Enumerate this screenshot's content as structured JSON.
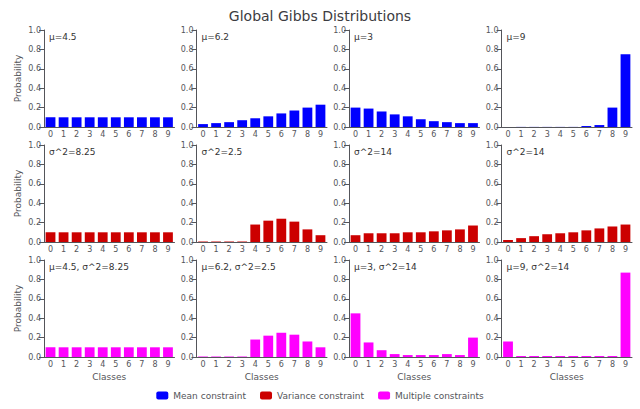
{
  "title": "Global Gibbs Distributions",
  "legend": "bottom",
  "chart_data": [
    {
      "type": "bar",
      "annotation": "μ=4.5",
      "ylabel": "Probability",
      "categories": [
        "0",
        "1",
        "2",
        "3",
        "4",
        "5",
        "6",
        "7",
        "8",
        "9"
      ],
      "series": [
        {
          "name": "Mean constraint",
          "color": "#0000ff",
          "values": [
            0.1,
            0.1,
            0.1,
            0.1,
            0.1,
            0.1,
            0.1,
            0.1,
            0.1,
            0.1
          ]
        }
      ],
      "ylim": [
        0,
        1.0
      ],
      "yticks": [
        {
          "value": 0.0,
          "label": "0.0"
        },
        0.2,
        0.4,
        0.6,
        0.8,
        {
          "value": 1.0,
          "label": "1.0"
        }
      ],
      "grid": false
    },
    {
      "type": "bar",
      "annotation": "μ=6.2",
      "categories": [
        "0",
        "1",
        "2",
        "3",
        "4",
        "5",
        "6",
        "7",
        "8",
        "9"
      ],
      "series": [
        {
          "name": "Mean constraint",
          "color": "#0000ff",
          "values": [
            0.03,
            0.04,
            0.05,
            0.07,
            0.09,
            0.11,
            0.14,
            0.17,
            0.2,
            0.23
          ]
        }
      ],
      "ylim": [
        0,
        1.0
      ],
      "yticks": [
        {
          "value": 0.0,
          "label": "0.0"
        },
        0.2,
        0.4,
        0.6,
        0.8,
        {
          "value": 1.0,
          "label": "1.0"
        }
      ],
      "grid": false
    },
    {
      "type": "bar",
      "annotation": "μ=3",
      "categories": [
        "0",
        "1",
        "2",
        "3",
        "4",
        "5",
        "6",
        "7",
        "8",
        "9"
      ],
      "series": [
        {
          "name": "Mean constraint",
          "color": "#0000ff",
          "values": [
            0.2,
            0.19,
            0.16,
            0.13,
            0.11,
            0.08,
            0.06,
            0.05,
            0.04,
            0.04
          ]
        }
      ],
      "ylim": [
        0,
        1.0
      ],
      "yticks": [
        {
          "value": 0.0,
          "label": "0.0"
        },
        0.2,
        0.4,
        0.6,
        0.8,
        {
          "value": 1.0,
          "label": "1.0"
        }
      ],
      "grid": false
    },
    {
      "type": "bar",
      "annotation": "μ=9",
      "categories": [
        "0",
        "1",
        "2",
        "3",
        "4",
        "5",
        "6",
        "7",
        "8",
        "9"
      ],
      "series": [
        {
          "name": "Mean constraint",
          "color": "#0000ff",
          "values": [
            0.001,
            0.001,
            0.001,
            0.001,
            0.001,
            0.001,
            0.01,
            0.02,
            0.2,
            0.75
          ]
        }
      ],
      "ylim": [
        0,
        1.0
      ],
      "yticks": [
        {
          "value": 0.0,
          "label": "0.0"
        },
        0.2,
        0.4,
        0.6,
        0.8,
        {
          "value": 1.0,
          "label": "1.0"
        }
      ],
      "grid": false
    },
    {
      "type": "bar",
      "annotation": "σ^2=8.25",
      "ylabel": "Probability",
      "categories": [
        "0",
        "1",
        "2",
        "3",
        "4",
        "5",
        "6",
        "7",
        "8",
        "9"
      ],
      "series": [
        {
          "name": "Variance constraint",
          "color": "#cc0000",
          "values": [
            0.1,
            0.1,
            0.1,
            0.1,
            0.1,
            0.1,
            0.1,
            0.1,
            0.1,
            0.1
          ]
        }
      ],
      "ylim": [
        0,
        1.0
      ],
      "yticks": [
        {
          "value": 0.0,
          "label": "0.0"
        },
        0.2,
        0.4,
        0.6,
        0.8,
        {
          "value": 1.0,
          "label": "1.0"
        }
      ],
      "grid": false
    },
    {
      "type": "bar",
      "annotation": "σ^2=2.5",
      "categories": [
        "0",
        "1",
        "2",
        "3",
        "4",
        "5",
        "6",
        "7",
        "8",
        "9"
      ],
      "series": [
        {
          "name": "Variance constraint",
          "color": "#cc0000",
          "values": [
            0.005,
            0.005,
            0.005,
            0.005,
            0.18,
            0.22,
            0.24,
            0.21,
            0.13,
            0.07
          ]
        }
      ],
      "ylim": [
        0,
        1.0
      ],
      "yticks": [
        {
          "value": 0.0,
          "label": "0.0"
        },
        0.2,
        0.4,
        0.6,
        0.8,
        {
          "value": 1.0,
          "label": "1.0"
        }
      ],
      "grid": false
    },
    {
      "type": "bar",
      "annotation": "σ^2=14",
      "categories": [
        "0",
        "1",
        "2",
        "3",
        "4",
        "5",
        "6",
        "7",
        "8",
        "9"
      ],
      "series": [
        {
          "name": "Variance constraint",
          "color": "#cc0000",
          "values": [
            0.07,
            0.09,
            0.09,
            0.09,
            0.1,
            0.1,
            0.11,
            0.12,
            0.13,
            0.17
          ]
        }
      ],
      "ylim": [
        0,
        1.0
      ],
      "yticks": [
        {
          "value": 0.0,
          "label": "0.0"
        },
        0.2,
        0.4,
        0.6,
        0.8,
        {
          "value": 1.0,
          "label": "1.0"
        }
      ],
      "grid": false
    },
    {
      "type": "bar",
      "annotation": "σ^2=14",
      "categories": [
        "0",
        "1",
        "2",
        "3",
        "4",
        "5",
        "6",
        "7",
        "8",
        "9"
      ],
      "series": [
        {
          "name": "Variance constraint",
          "color": "#cc0000",
          "values": [
            0.02,
            0.04,
            0.06,
            0.08,
            0.09,
            0.1,
            0.12,
            0.14,
            0.16,
            0.18
          ]
        }
      ],
      "ylim": [
        0,
        1.0
      ],
      "yticks": [
        {
          "value": 0.0,
          "label": "0.0"
        },
        0.2,
        0.4,
        0.6,
        0.8,
        {
          "value": 1.0,
          "label": "1.0"
        }
      ],
      "grid": false
    },
    {
      "type": "bar",
      "annotation": "μ=4.5, σ^2=8.25",
      "ylabel": "Probability",
      "xlabel": "Classes",
      "categories": [
        "0",
        "1",
        "2",
        "3",
        "4",
        "5",
        "6",
        "7",
        "8",
        "9"
      ],
      "series": [
        {
          "name": "Multiple constraints",
          "color": "#ff00ff",
          "values": [
            0.1,
            0.1,
            0.1,
            0.1,
            0.1,
            0.1,
            0.1,
            0.1,
            0.1,
            0.1
          ]
        }
      ],
      "ylim": [
        0,
        1.0
      ],
      "yticks": [
        {
          "value": 0.0,
          "label": "0.0"
        },
        0.2,
        0.4,
        0.6,
        0.8,
        {
          "value": 1.0,
          "label": "1.0"
        }
      ],
      "grid": false
    },
    {
      "type": "bar",
      "annotation": "μ=6.2, σ^2=2.5",
      "xlabel": "Classes",
      "categories": [
        "0",
        "1",
        "2",
        "3",
        "4",
        "5",
        "6",
        "7",
        "8",
        "9"
      ],
      "series": [
        {
          "name": "Multiple constraints",
          "color": "#ff00ff",
          "values": [
            0.005,
            0.005,
            0.005,
            0.005,
            0.18,
            0.22,
            0.25,
            0.23,
            0.16,
            0.1
          ]
        }
      ],
      "ylim": [
        0,
        1.0
      ],
      "yticks": [
        {
          "value": 0.0,
          "label": "0.0"
        },
        0.2,
        0.4,
        0.6,
        0.8,
        {
          "value": 1.0,
          "label": "1.0"
        }
      ],
      "grid": false
    },
    {
      "type": "bar",
      "annotation": "μ=3, σ^2=14",
      "xlabel": "Classes",
      "categories": [
        "0",
        "1",
        "2",
        "3",
        "4",
        "5",
        "6",
        "7",
        "8",
        "9"
      ],
      "series": [
        {
          "name": "Multiple constraints",
          "color": "#ff00ff",
          "values": [
            0.45,
            0.15,
            0.07,
            0.03,
            0.02,
            0.02,
            0.02,
            0.03,
            0.02,
            0.2
          ]
        }
      ],
      "ylim": [
        0,
        1.0
      ],
      "yticks": [
        {
          "value": 0.0,
          "label": "0.0"
        },
        0.2,
        0.4,
        0.6,
        0.8,
        {
          "value": 1.0,
          "label": "1.0"
        }
      ],
      "grid": false
    },
    {
      "type": "bar",
      "annotation": "μ=9, σ^2=14",
      "xlabel": "Classes",
      "categories": [
        "0",
        "1",
        "2",
        "3",
        "4",
        "5",
        "6",
        "7",
        "8",
        "9"
      ],
      "series": [
        {
          "name": "Multiple constraints",
          "color": "#ff00ff",
          "values": [
            0.16,
            0.01,
            0.01,
            0.01,
            0.01,
            0.01,
            0.01,
            0.01,
            0.01,
            0.87
          ]
        }
      ],
      "ylim": [
        0,
        1.0
      ],
      "yticks": [
        {
          "value": 0.0,
          "label": "0.0"
        },
        0.2,
        0.4,
        0.6,
        0.8,
        {
          "value": 1.0,
          "label": "1.0"
        }
      ],
      "grid": false
    }
  ]
}
